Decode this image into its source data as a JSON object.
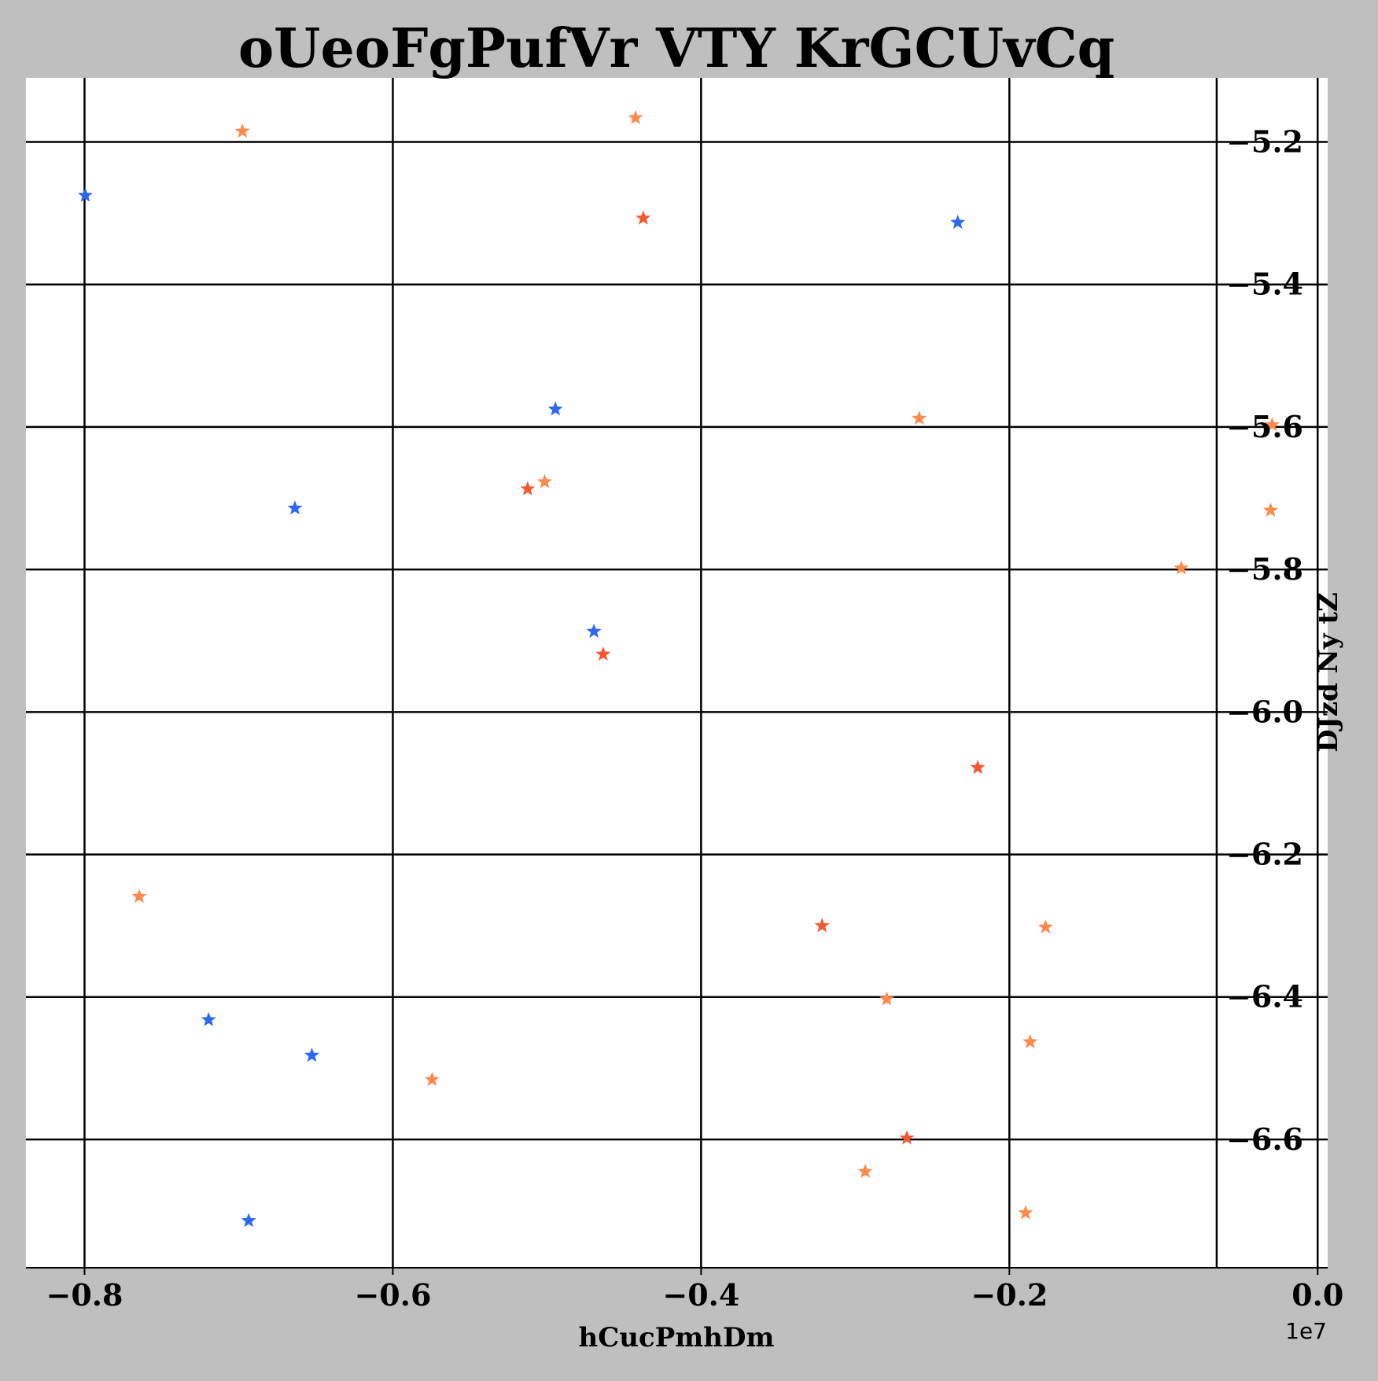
{
  "chart_data": {
    "type": "scatter",
    "title": "oUeoFgPufVr VTY KrGCUvCq",
    "xlabel": "hCucPmhDm",
    "ylabel": "DJzd Ny tZ",
    "x_offset_text": "1e7",
    "x_scale_factor": 10000000,
    "xlim": [
      -0.838,
      0.0065
    ],
    "ylim": [
      -6.78,
      -5.11
    ],
    "x_ticks": [
      -0.8,
      -0.6,
      -0.4,
      -0.2,
      0.0
    ],
    "x_tick_labels": [
      "−0.8",
      "−0.6",
      "−0.4",
      "−0.2",
      "0.0"
    ],
    "y_ticks": [
      -5.2,
      -5.4,
      -5.6,
      -5.8,
      -6.0,
      -6.2,
      -6.4,
      -6.6
    ],
    "y_tick_labels": [
      "−5.2",
      "−5.4",
      "−5.6",
      "−5.8",
      "−6.0",
      "−6.2",
      "−6.4",
      "−6.6"
    ],
    "extra_vertical_gridline_x": -0.0655,
    "y_axis_position": "right",
    "grid": true,
    "marker": "star",
    "series": [
      {
        "color": "#2f66f0",
        "points": [
          {
            "x": -0.7995,
            "y": -5.275
          },
          {
            "x": -0.4945,
            "y": -5.575
          },
          {
            "x": -0.6635,
            "y": -5.714
          },
          {
            "x": -0.2335,
            "y": -5.313
          },
          {
            "x": -0.4695,
            "y": -5.887
          },
          {
            "x": -0.7195,
            "y": -6.432
          },
          {
            "x": -0.6525,
            "y": -6.482
          },
          {
            "x": -0.6935,
            "y": -6.714
          }
        ]
      },
      {
        "color": "#f5572e",
        "points": [
          {
            "x": -0.4375,
            "y": -5.307
          },
          {
            "x": -0.5125,
            "y": -5.687
          },
          {
            "x": -0.4635,
            "y": -5.919
          },
          {
            "x": -0.2205,
            "y": -6.078
          },
          {
            "x": -0.3215,
            "y": -6.3
          },
          {
            "x": -0.2665,
            "y": -6.598
          }
        ]
      },
      {
        "color": "#fd8a4b",
        "points": [
          {
            "x": -0.6975,
            "y": -5.185
          },
          {
            "x": -0.4425,
            "y": -5.166
          },
          {
            "x": -0.2585,
            "y": -5.588
          },
          {
            "x": -0.5015,
            "y": -5.677
          },
          {
            "x": -0.0295,
            "y": -5.597
          },
          {
            "x": -0.0305,
            "y": -5.717
          },
          {
            "x": -0.0885,
            "y": -5.798
          },
          {
            "x": -0.7645,
            "y": -6.259
          },
          {
            "x": -0.1765,
            "y": -6.302
          },
          {
            "x": -0.2795,
            "y": -6.403
          },
          {
            "x": -0.1865,
            "y": -6.463
          },
          {
            "x": -0.5745,
            "y": -6.516
          },
          {
            "x": -0.2935,
            "y": -6.645
          },
          {
            "x": -0.1895,
            "y": -6.703
          }
        ]
      }
    ]
  }
}
